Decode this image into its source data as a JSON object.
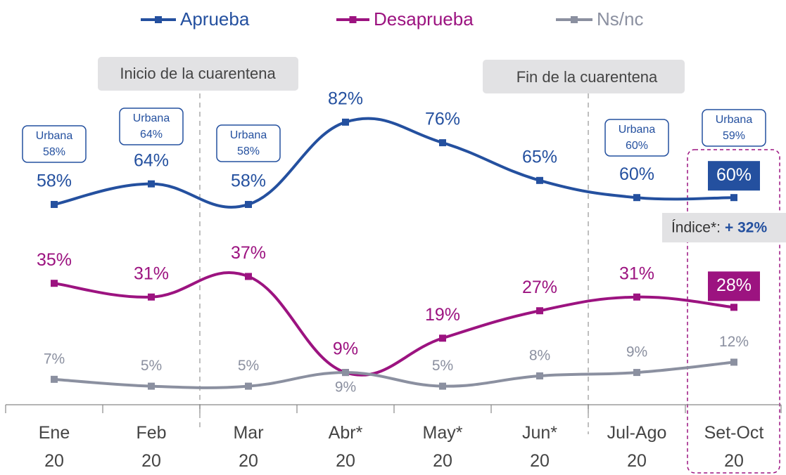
{
  "chart_data": {
    "type": "line",
    "categories": [
      "Ene 20",
      "Feb 20",
      "Mar 20",
      "Abr* 20",
      "May* 20",
      "Jun* 20",
      "Jul-Ago 20",
      "Set-Oct 20"
    ],
    "series": [
      {
        "name": "Aprueba",
        "color": "#24509f",
        "values": [
          58,
          64,
          58,
          82,
          76,
          65,
          60,
          60
        ],
        "value_labels": [
          "58%",
          "64%",
          "58%",
          "82%",
          "76%",
          "65%",
          "60%",
          "60%"
        ]
      },
      {
        "name": "Desaprueba",
        "color": "#9c1380",
        "values": [
          35,
          31,
          37,
          9,
          19,
          27,
          31,
          28
        ],
        "value_labels": [
          "35%",
          "31%",
          "37%",
          "9%",
          "19%",
          "27%",
          "31%",
          "28%"
        ]
      },
      {
        "name": "Ns/nc",
        "color": "#8b90a0",
        "values": [
          7,
          5,
          5,
          9,
          5,
          8,
          9,
          12
        ],
        "value_labels": [
          "7%",
          "5%",
          "5%",
          "9%",
          "5%",
          "8%",
          "9%",
          "12%"
        ]
      }
    ],
    "ylim": [
      0,
      100
    ],
    "annotations": [
      {
        "text": "Inicio de la cuarentena"
      },
      {
        "text": "Fin de la cuarentena"
      },
      {
        "label": "Índice*:",
        "value": "+ 32%"
      }
    ],
    "urbana": [
      {
        "category": "Ene 20",
        "lines": [
          "Urbana",
          "58%"
        ]
      },
      {
        "category": "Feb 20",
        "lines": [
          "Urbana",
          "64%"
        ]
      },
      {
        "category": "Mar 20",
        "lines": [
          "Urbana",
          "58%"
        ]
      },
      {
        "category": "Jul-Ago 20",
        "lines": [
          "Urbana",
          "60%"
        ]
      },
      {
        "category": "Set-Oct 20",
        "lines": [
          "Urbana",
          "59%"
        ]
      }
    ]
  }
}
